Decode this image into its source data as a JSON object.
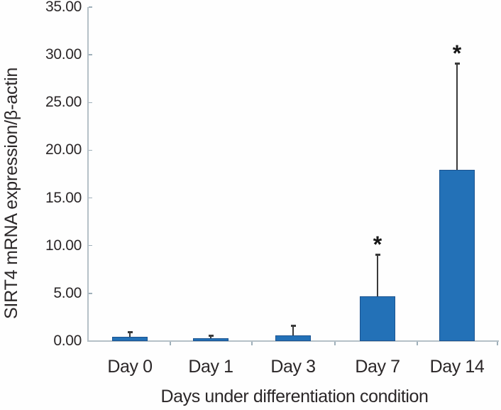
{
  "figure": {
    "background": "#fefefe",
    "text_color": "#2b2728",
    "axis_color": "#b5c0c7",
    "tick_color": "#9fb0ba",
    "error_bar_color": "#3a3a3a",
    "significance_color": "#161616"
  },
  "chart_data": {
    "type": "bar",
    "title": "",
    "ylabel": "SIRT4 mRNA expression/β-actin",
    "xlabel": "Days under differentiation condition",
    "categories": [
      "Day 0",
      "Day 1",
      "Day 3",
      "Day 7",
      "Day 14"
    ],
    "values": [
      0.45,
      0.32,
      0.62,
      4.67,
      17.95
    ],
    "error_upper": [
      0.45,
      0.25,
      1.0,
      4.35,
      11.1
    ],
    "significant": [
      false,
      false,
      false,
      true,
      true
    ],
    "significance_marker": "*",
    "bar_color": "#2371b7",
    "bar_border_color": "#1b5390",
    "ylim": [
      0,
      35
    ],
    "ytick_step": 5,
    "ytick_decimals": 2,
    "ytick_labels": [
      "0.00",
      "5.00",
      "10.00",
      "15.00",
      "20.00",
      "25.00",
      "30.00",
      "35.00"
    ],
    "grid": false,
    "legend": false,
    "error_bars": "upper-only"
  }
}
